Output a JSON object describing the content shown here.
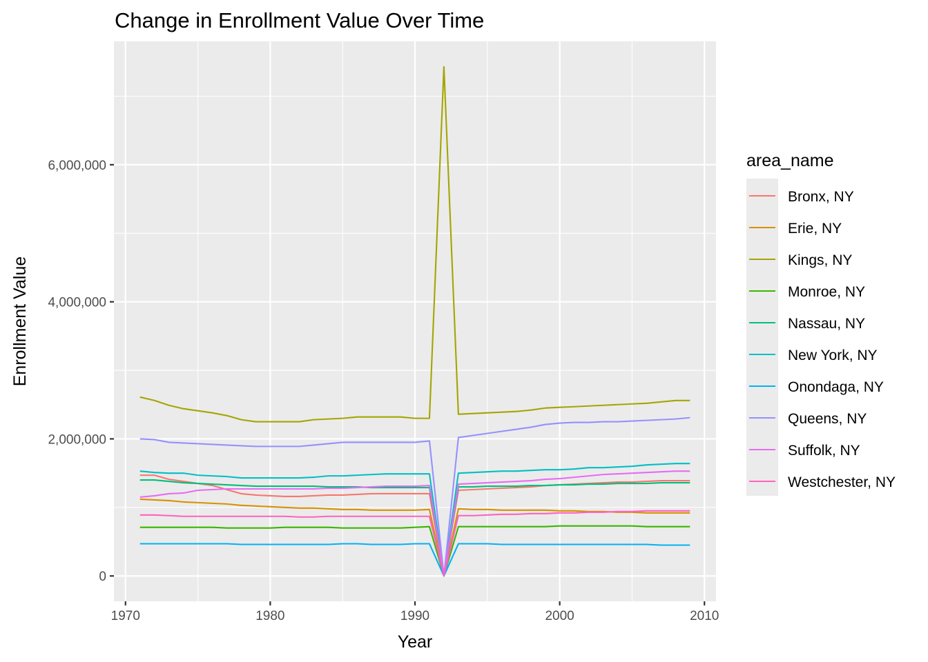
{
  "chart_data": {
    "type": "line",
    "title": "Change in Enrollment Value Over Time",
    "xlabel": "Year",
    "ylabel": "Enrollment Value",
    "xlim": [
      1969.2,
      2010.8
    ],
    "ylim": [
      -370000,
      7800000
    ],
    "x_ticks": [
      1970,
      1980,
      1990,
      2000,
      2010
    ],
    "y_ticks": [
      0,
      2000000,
      4000000,
      6000000
    ],
    "x_tick_labels": [
      "1970",
      "1980",
      "1990",
      "2000",
      "2010"
    ],
    "y_tick_labels": [
      "0",
      "2,000,000",
      "4,000,000",
      "6,000,000"
    ],
    "grid": true,
    "panel_background": "#EBEBEB",
    "legend": {
      "title": "area_name",
      "position": "right",
      "entries": [
        "Bronx, NY",
        "Erie, NY",
        "Kings, NY",
        "Monroe, NY",
        "Nassau, NY",
        "New York, NY",
        "Onondaga, NY",
        "Queens, NY",
        "Suffolk, NY",
        "Westchester, NY"
      ]
    },
    "x": [
      1971,
      1972,
      1973,
      1974,
      1975,
      1976,
      1977,
      1978,
      1979,
      1980,
      1981,
      1982,
      1983,
      1984,
      1985,
      1986,
      1987,
      1988,
      1989,
      1990,
      1991,
      1992,
      1993,
      1994,
      1995,
      1996,
      1997,
      1998,
      1999,
      2000,
      2001,
      2002,
      2003,
      2004,
      2005,
      2006,
      2007,
      2008,
      2009
    ],
    "series": [
      {
        "name": "Bronx, NY",
        "color": "#F8766D",
        "values": [
          1470000,
          1470000,
          1410000,
          1380000,
          1350000,
          1320000,
          1260000,
          1200000,
          1180000,
          1170000,
          1160000,
          1160000,
          1170000,
          1180000,
          1180000,
          1190000,
          1200000,
          1200000,
          1200000,
          1200000,
          1200000,
          0,
          1250000,
          1260000,
          1270000,
          1280000,
          1290000,
          1300000,
          1320000,
          1330000,
          1340000,
          1350000,
          1360000,
          1370000,
          1370000,
          1380000,
          1390000,
          1390000,
          1390000
        ]
      },
      {
        "name": "Erie, NY",
        "color": "#D89000",
        "values": [
          1120000,
          1110000,
          1100000,
          1080000,
          1070000,
          1060000,
          1050000,
          1030000,
          1020000,
          1010000,
          1000000,
          990000,
          990000,
          980000,
          970000,
          970000,
          960000,
          960000,
          960000,
          960000,
          970000,
          0,
          980000,
          970000,
          970000,
          960000,
          960000,
          960000,
          960000,
          950000,
          950000,
          940000,
          940000,
          930000,
          930000,
          920000,
          920000,
          920000,
          920000
        ]
      },
      {
        "name": "Kings, NY",
        "color": "#A3A500",
        "values": [
          2610000,
          2560000,
          2490000,
          2440000,
          2410000,
          2380000,
          2340000,
          2280000,
          2250000,
          2250000,
          2250000,
          2250000,
          2280000,
          2290000,
          2300000,
          2320000,
          2320000,
          2320000,
          2320000,
          2300000,
          2300000,
          7430000,
          2360000,
          2370000,
          2380000,
          2390000,
          2400000,
          2420000,
          2450000,
          2460000,
          2470000,
          2480000,
          2490000,
          2500000,
          2510000,
          2520000,
          2540000,
          2560000,
          2560000
        ]
      },
      {
        "name": "Monroe, NY",
        "color": "#39B600",
        "values": [
          710000,
          710000,
          710000,
          710000,
          710000,
          710000,
          700000,
          700000,
          700000,
          700000,
          710000,
          710000,
          710000,
          710000,
          700000,
          700000,
          700000,
          700000,
          700000,
          710000,
          720000,
          0,
          720000,
          720000,
          720000,
          720000,
          720000,
          720000,
          720000,
          730000,
          730000,
          730000,
          730000,
          730000,
          730000,
          720000,
          720000,
          720000,
          720000
        ]
      },
      {
        "name": "Nassau, NY",
        "color": "#00BF7D",
        "values": [
          1400000,
          1400000,
          1380000,
          1360000,
          1350000,
          1340000,
          1330000,
          1320000,
          1310000,
          1310000,
          1310000,
          1310000,
          1310000,
          1300000,
          1300000,
          1300000,
          1290000,
          1290000,
          1290000,
          1290000,
          1290000,
          0,
          1300000,
          1300000,
          1310000,
          1310000,
          1310000,
          1320000,
          1320000,
          1330000,
          1330000,
          1340000,
          1340000,
          1350000,
          1350000,
          1350000,
          1360000,
          1360000,
          1360000
        ]
      },
      {
        "name": "New York, NY",
        "color": "#00BFC4",
        "values": [
          1530000,
          1510000,
          1500000,
          1500000,
          1470000,
          1460000,
          1450000,
          1430000,
          1430000,
          1430000,
          1430000,
          1430000,
          1440000,
          1460000,
          1460000,
          1470000,
          1480000,
          1490000,
          1490000,
          1490000,
          1490000,
          0,
          1500000,
          1510000,
          1520000,
          1530000,
          1530000,
          1540000,
          1550000,
          1550000,
          1560000,
          1580000,
          1580000,
          1590000,
          1600000,
          1620000,
          1630000,
          1640000,
          1640000
        ]
      },
      {
        "name": "Onondaga, NY",
        "color": "#00B0F6",
        "values": [
          470000,
          470000,
          470000,
          470000,
          470000,
          470000,
          470000,
          460000,
          460000,
          460000,
          460000,
          460000,
          460000,
          460000,
          470000,
          470000,
          460000,
          460000,
          460000,
          470000,
          470000,
          0,
          470000,
          470000,
          470000,
          460000,
          460000,
          460000,
          460000,
          460000,
          460000,
          460000,
          460000,
          460000,
          460000,
          460000,
          450000,
          450000,
          450000
        ]
      },
      {
        "name": "Queens, NY",
        "color": "#9590FF",
        "values": [
          2000000,
          1990000,
          1950000,
          1940000,
          1930000,
          1920000,
          1910000,
          1900000,
          1890000,
          1890000,
          1890000,
          1890000,
          1910000,
          1930000,
          1950000,
          1950000,
          1950000,
          1950000,
          1950000,
          1950000,
          1970000,
          0,
          2020000,
          2050000,
          2080000,
          2110000,
          2140000,
          2170000,
          2210000,
          2230000,
          2240000,
          2240000,
          2250000,
          2250000,
          2260000,
          2270000,
          2280000,
          2290000,
          2310000
        ]
      },
      {
        "name": "Suffolk, NY",
        "color": "#E76BF3",
        "values": [
          1150000,
          1170000,
          1200000,
          1210000,
          1250000,
          1260000,
          1270000,
          1270000,
          1270000,
          1270000,
          1270000,
          1270000,
          1270000,
          1280000,
          1280000,
          1290000,
          1300000,
          1310000,
          1310000,
          1310000,
          1320000,
          0,
          1340000,
          1350000,
          1360000,
          1370000,
          1380000,
          1390000,
          1410000,
          1420000,
          1440000,
          1460000,
          1480000,
          1490000,
          1500000,
          1510000,
          1520000,
          1530000,
          1530000
        ]
      },
      {
        "name": "Westchester, NY",
        "color": "#FF62BC",
        "values": [
          890000,
          890000,
          880000,
          870000,
          870000,
          870000,
          870000,
          870000,
          870000,
          870000,
          870000,
          860000,
          860000,
          870000,
          870000,
          870000,
          870000,
          870000,
          870000,
          870000,
          870000,
          0,
          880000,
          880000,
          890000,
          900000,
          900000,
          910000,
          910000,
          920000,
          920000,
          930000,
          930000,
          940000,
          940000,
          950000,
          950000,
          950000,
          950000
        ]
      }
    ]
  }
}
